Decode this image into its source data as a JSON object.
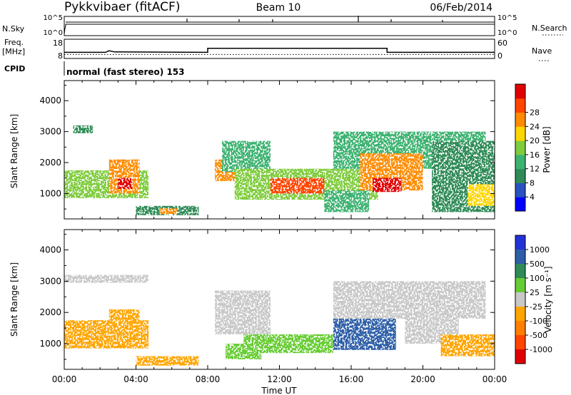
{
  "header": {
    "station": "Pykkvibaer (fitACF)",
    "beam": "Beam 10",
    "date": "06/Feb/2014"
  },
  "top_panels": {
    "nsky_label": "N.Sky",
    "nsky_ticks": [
      "10^5",
      "10^0"
    ],
    "nsearch_label": "N.Search",
    "nsearch_ticks": [
      "10^5",
      "10^0"
    ],
    "freq_label_1": "Freq.",
    "freq_label_2": "[MHz]",
    "freq_ticks": [
      "18",
      "8"
    ],
    "nave_label": "Nave",
    "nave_ticks": [
      "60",
      "0"
    ],
    "cpid_label": "CPID",
    "cpid_value": "normal (fast stereo) 153",
    "freq_trace": [
      [
        0,
        11.2
      ],
      [
        2.3,
        11.2
      ],
      [
        2.5,
        12.0
      ],
      [
        2.8,
        11.4
      ],
      [
        8.0,
        11.2
      ],
      [
        8.0,
        13.3
      ],
      [
        18.0,
        13.3
      ],
      [
        18.0,
        11.2
      ],
      [
        24.0,
        11.2
      ]
    ],
    "nave_trace": [
      [
        0,
        12.5
      ],
      [
        24,
        12.5
      ]
    ]
  },
  "chart_data": [
    {
      "type": "heatmap",
      "name": "power",
      "xlabel": "",
      "ylabel": "Slant Range [km]",
      "x_ticks": [
        "00:00",
        "04:00",
        "08:00",
        "12:00",
        "16:00",
        "20:00",
        "00:00"
      ],
      "xlim": [
        0,
        24
      ],
      "y_ticks": [
        "1000",
        "2000",
        "3000",
        "4000"
      ],
      "ylim": [
        180,
        4650
      ],
      "colorbar": {
        "label": "Power [dB]",
        "ticks": [
          "4",
          "8",
          "12",
          "16",
          "20",
          "24",
          "28"
        ],
        "range": [
          0,
          30
        ],
        "colors": [
          "#0000ff",
          "#2a52be",
          "#2e8b57",
          "#3cb371",
          "#7fcc3c",
          "#ffd700",
          "#ff8c00",
          "#ff4500",
          "#e00000"
        ]
      },
      "regions": [
        {
          "t0": 0.5,
          "t1": 1.6,
          "r0": 2950,
          "r1": 3200,
          "level": 9
        },
        {
          "t0": 0.0,
          "t1": 4.7,
          "r0": 850,
          "r1": 1750,
          "level": 14
        },
        {
          "t0": 2.5,
          "t1": 4.2,
          "r0": 1000,
          "r1": 2100,
          "level": 23
        },
        {
          "t0": 3.0,
          "t1": 3.8,
          "r0": 1150,
          "r1": 1500,
          "level": 28
        },
        {
          "t0": 4.0,
          "t1": 7.5,
          "r0": 300,
          "r1": 600,
          "level": 9
        },
        {
          "t0": 5.3,
          "t1": 6.3,
          "r0": 330,
          "r1": 520,
          "level": 22
        },
        {
          "t0": 8.4,
          "t1": 10.0,
          "r0": 1400,
          "r1": 2100,
          "level": 20
        },
        {
          "t0": 8.8,
          "t1": 11.5,
          "r0": 1700,
          "r1": 2700,
          "level": 10
        },
        {
          "t0": 9.5,
          "t1": 17.5,
          "r0": 800,
          "r1": 1800,
          "level": 16
        },
        {
          "t0": 11.5,
          "t1": 14.5,
          "r0": 1000,
          "r1": 1500,
          "level": 26
        },
        {
          "t0": 14.5,
          "t1": 17.0,
          "r0": 400,
          "r1": 1100,
          "level": 12
        },
        {
          "t0": 15.0,
          "t1": 23.5,
          "r0": 1800,
          "r1": 3000,
          "level": 11
        },
        {
          "t0": 16.5,
          "t1": 20.0,
          "r0": 1100,
          "r1": 2300,
          "level": 22
        },
        {
          "t0": 17.2,
          "t1": 18.8,
          "r0": 1050,
          "r1": 1500,
          "level": 27
        },
        {
          "t0": 20.5,
          "t1": 24.0,
          "r0": 400,
          "r1": 2700,
          "level": 8
        },
        {
          "t0": 22.5,
          "t1": 24.0,
          "r0": 600,
          "r1": 1300,
          "level": 17
        }
      ]
    },
    {
      "type": "heatmap",
      "name": "velocity",
      "xlabel": "Time UT",
      "ylabel": "Slant Range [km]",
      "x_ticks": [
        "00:00",
        "04:00",
        "08:00",
        "12:00",
        "16:00",
        "20:00",
        "00:00"
      ],
      "xlim": [
        0,
        24
      ],
      "y_ticks": [
        "1000",
        "2000",
        "3000",
        "4000"
      ],
      "ylim": [
        180,
        4650
      ],
      "colorbar": {
        "label": "Velocity [m s⁻¹]",
        "ticks": [
          "1000",
          "500",
          "100",
          "25",
          "-25",
          "-100",
          "-500",
          "-1000"
        ],
        "range": [
          -1200,
          1200
        ],
        "colors": [
          "#2332d6",
          "#2e5ea8",
          "#2e8b57",
          "#66cc33",
          "#c8c8c8",
          "#ffa500",
          "#ff7f00",
          "#ff4500",
          "#e00000"
        ]
      },
      "regions": [
        {
          "t0": 0.0,
          "t1": 4.7,
          "r0": 2950,
          "r1": 3200,
          "velocity": 0
        },
        {
          "t0": 0.0,
          "t1": 4.7,
          "r0": 850,
          "r1": 1750,
          "velocity": -150
        },
        {
          "t0": 2.5,
          "t1": 4.2,
          "r0": 1000,
          "r1": 2100,
          "velocity": -300
        },
        {
          "t0": 4.0,
          "t1": 7.5,
          "r0": 300,
          "r1": 600,
          "velocity": -300
        },
        {
          "t0": 8.4,
          "t1": 11.5,
          "r0": 1300,
          "r1": 2700,
          "velocity": 0
        },
        {
          "t0": 9.0,
          "t1": 11.0,
          "r0": 500,
          "r1": 1000,
          "velocity": 300
        },
        {
          "t0": 10.0,
          "t1": 15.0,
          "r0": 700,
          "r1": 1300,
          "velocity": 150
        },
        {
          "t0": 15.0,
          "t1": 18.5,
          "r0": 800,
          "r1": 1900,
          "velocity": 800
        },
        {
          "t0": 15.0,
          "t1": 23.5,
          "r0": 1800,
          "r1": 3000,
          "velocity": 0
        },
        {
          "t0": 19.0,
          "t1": 22.0,
          "r0": 1000,
          "r1": 2000,
          "velocity": 0
        },
        {
          "t0": 21.0,
          "t1": 24.0,
          "r0": 600,
          "r1": 1300,
          "velocity": -200
        }
      ]
    }
  ]
}
